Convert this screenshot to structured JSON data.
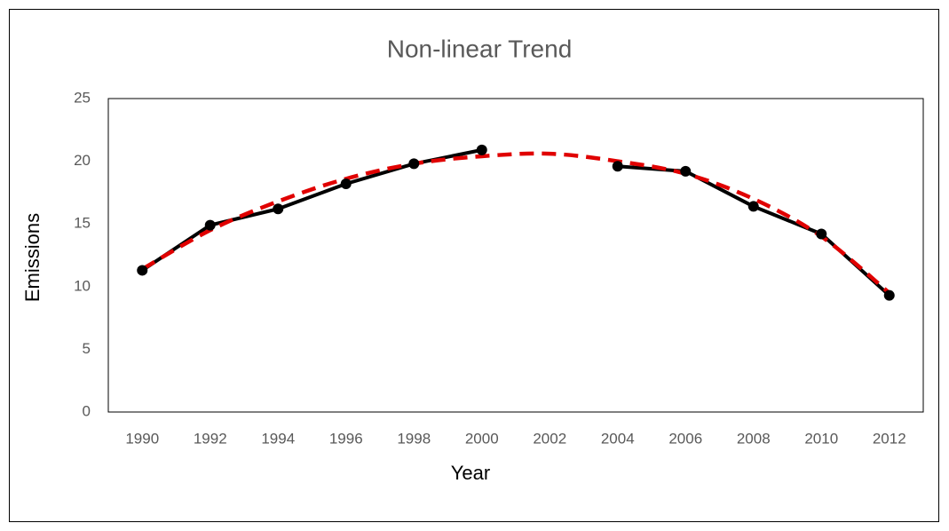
{
  "chart_data": {
    "type": "line",
    "title": "Non-linear Trend",
    "x_label": "Year",
    "y_label": "Emissions",
    "categories": [
      "1990",
      "1992",
      "1994",
      "1996",
      "1998",
      "2000",
      "2002",
      "2004",
      "2006",
      "2008",
      "2010",
      "2012"
    ],
    "series": [
      {
        "color": "#000000",
        "style": "solid",
        "markers": true,
        "values": [
          11.3,
          14.9,
          16.2,
          18.2,
          19.8,
          20.9,
          null,
          19.6,
          19.2,
          16.4,
          14.2,
          9.3
        ]
      },
      {
        "color": "#e00000",
        "style": "dashed",
        "markers": false,
        "values": [
          11.4,
          14.5,
          16.8,
          18.6,
          19.8,
          20.4,
          20.6,
          20.0,
          19.0,
          17.0,
          14.0,
          9.5
        ]
      }
    ],
    "ylim": [
      0,
      25
    ],
    "yticks": [
      0,
      5,
      10,
      15,
      20,
      25
    ],
    "grid": false
  }
}
